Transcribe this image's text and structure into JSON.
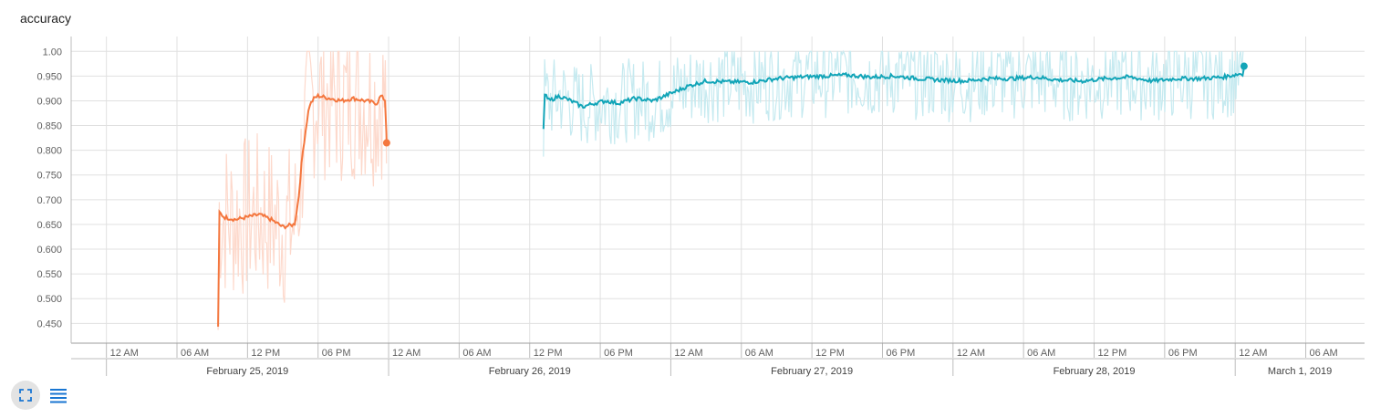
{
  "chart_data": {
    "type": "line",
    "title": "accuracy",
    "xlabel": "",
    "ylabel": "",
    "x_axis_type": "datetime",
    "xlim": [
      "2019-02-24T21:00",
      "2019-03-01T11:00"
    ],
    "ylim": [
      0.41,
      1.03
    ],
    "yticks": [
      0.45,
      0.5,
      0.55,
      0.6,
      0.65,
      0.7,
      0.75,
      0.8,
      0.85,
      0.9,
      0.95,
      1.0
    ],
    "ytick_labels": [
      "0.450",
      "0.500",
      "0.550",
      "0.600",
      "0.650",
      "0.700",
      "0.750",
      "0.800",
      "0.850",
      "0.900",
      "0.950",
      "1.00"
    ],
    "xticks": [
      "2019-02-25T00:00",
      "2019-02-25T06:00",
      "2019-02-25T12:00",
      "2019-02-25T18:00",
      "2019-02-26T00:00",
      "2019-02-26T06:00",
      "2019-02-26T12:00",
      "2019-02-26T18:00",
      "2019-02-27T00:00",
      "2019-02-27T06:00",
      "2019-02-27T12:00",
      "2019-02-27T18:00",
      "2019-02-28T00:00",
      "2019-02-28T06:00",
      "2019-02-28T12:00",
      "2019-02-28T18:00",
      "2019-03-01T00:00",
      "2019-03-01T06:00"
    ],
    "xtick_labels": [
      "12 AM",
      "06 AM",
      "12 PM",
      "06 PM",
      "12 AM",
      "06 AM",
      "12 PM",
      "06 PM",
      "12 AM",
      "06 AM",
      "12 PM",
      "06 PM",
      "12 AM",
      "06 AM",
      "12 PM",
      "06 PM",
      "12 AM",
      "06 AM"
    ],
    "date_ticks": [
      "2019-02-25T00:00",
      "2019-02-26T00:00",
      "2019-02-27T00:00",
      "2019-02-28T00:00",
      "2019-03-01T00:00"
    ],
    "date_labels": [
      "February 25, 2019",
      "February 26, 2019",
      "February 27, 2019",
      "February 28, 2019",
      "March 1, 2019"
    ],
    "grid": true,
    "legend": "none",
    "series": [
      {
        "color": "#f4763d",
        "raw_color": "#fdd9cc",
        "x": [
          "2019-02-25T09:30",
          "2019-02-25T09:31",
          "2019-02-25T09:35",
          "2019-02-25T10:00",
          "2019-02-25T11:00",
          "2019-02-25T12:00",
          "2019-02-25T13:00",
          "2019-02-25T14:00",
          "2019-02-25T15:00",
          "2019-02-25T16:00",
          "2019-02-25T16:20",
          "2019-02-25T16:40",
          "2019-02-25T17:00",
          "2019-02-25T17:15",
          "2019-02-25T17:40",
          "2019-02-25T18:00",
          "2019-02-25T19:00",
          "2019-02-25T20:00",
          "2019-02-25T21:00",
          "2019-02-25T22:00",
          "2019-02-25T23:00",
          "2019-02-25T23:20",
          "2019-02-25T23:45",
          "2019-02-25T23:50"
        ],
        "y": [
          0.44,
          0.68,
          0.675,
          0.665,
          0.66,
          0.665,
          0.67,
          0.66,
          0.645,
          0.65,
          0.7,
          0.79,
          0.85,
          0.89,
          0.905,
          0.91,
          0.905,
          0.9,
          0.905,
          0.9,
          0.895,
          0.91,
          0.9,
          0.815
        ]
      },
      {
        "color": "#12a5b8",
        "raw_color": "#c6eaf0",
        "x": [
          "2019-02-26T13:10",
          "2019-02-26T13:11",
          "2019-02-26T13:40",
          "2019-02-26T14:30",
          "2019-02-26T15:30",
          "2019-02-26T16:30",
          "2019-02-26T17:30",
          "2019-02-26T18:30",
          "2019-02-26T19:30",
          "2019-02-26T21:00",
          "2019-02-26T22:30",
          "2019-02-27T00:00",
          "2019-02-27T01:30",
          "2019-02-27T03:00",
          "2019-02-27T05:00",
          "2019-02-27T07:00",
          "2019-02-27T09:00",
          "2019-02-27T11:00",
          "2019-02-27T13:00",
          "2019-02-27T15:00",
          "2019-02-27T17:00",
          "2019-02-27T19:00",
          "2019-02-27T21:00",
          "2019-02-27T23:00",
          "2019-02-28T01:00",
          "2019-02-28T03:00",
          "2019-02-28T05:00",
          "2019-02-28T07:00",
          "2019-02-28T09:00",
          "2019-02-28T11:00",
          "2019-02-28T13:00",
          "2019-02-28T15:00",
          "2019-02-28T17:00",
          "2019-02-28T19:00",
          "2019-02-28T21:00",
          "2019-02-28T23:00",
          "2019-03-01T00:30",
          "2019-03-01T00:40",
          "2019-03-01T00:45"
        ],
        "y": [
          0.845,
          0.915,
          0.9,
          0.91,
          0.9,
          0.888,
          0.895,
          0.9,
          0.895,
          0.905,
          0.9,
          0.915,
          0.93,
          0.94,
          0.938,
          0.938,
          0.945,
          0.948,
          0.95,
          0.952,
          0.948,
          0.95,
          0.945,
          0.942,
          0.94,
          0.945,
          0.945,
          0.948,
          0.942,
          0.94,
          0.945,
          0.948,
          0.94,
          0.945,
          0.945,
          0.948,
          0.955,
          0.95,
          0.97
        ]
      }
    ]
  },
  "toolbar": {
    "expand_icon": "fullscreen-icon",
    "data_icon": "list-icon"
  }
}
